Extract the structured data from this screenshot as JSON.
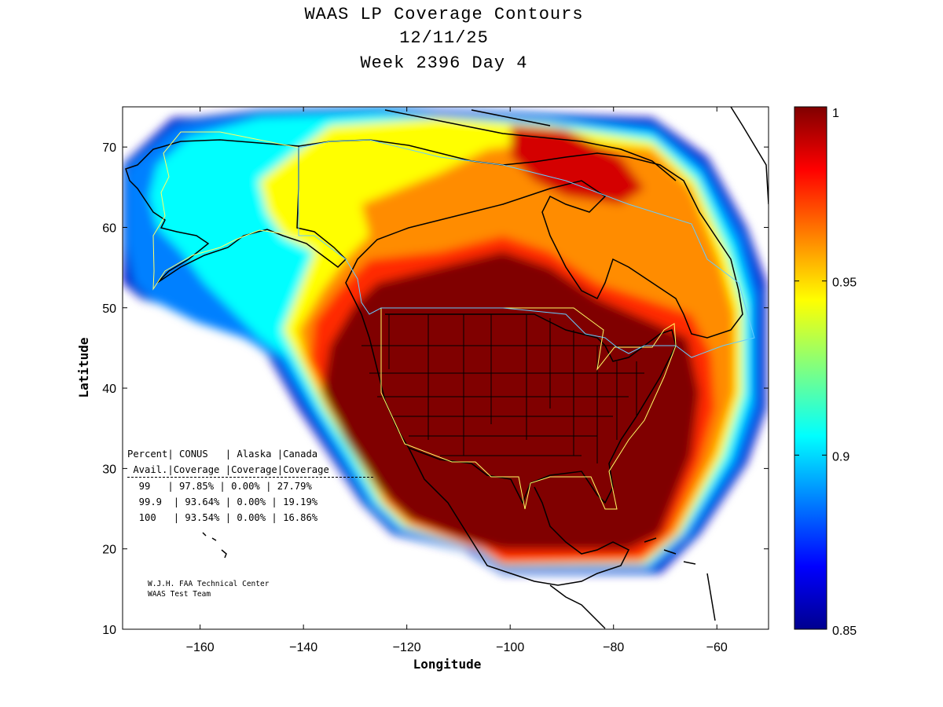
{
  "title": {
    "line1": "WAAS LP Coverage Contours",
    "line2": "12/11/25",
    "line3": "Week 2396 Day 4"
  },
  "axes": {
    "xlabel": "Longitude",
    "ylabel": "Latitude",
    "xlim": [
      -175,
      -50
    ],
    "ylim": [
      10,
      75
    ],
    "xticks": [
      -160,
      -140,
      -120,
      -100,
      -80,
      -60
    ],
    "yticks": [
      10,
      20,
      30,
      40,
      50,
      60,
      70
    ]
  },
  "colorbar": {
    "min": 0.85,
    "max": 1,
    "ticks": [
      "1",
      "0.95",
      "0.9",
      "0.85"
    ],
    "colormap": "jet"
  },
  "coverage_table": {
    "header1": "Percent| CONUS   | Alaska |Canada",
    "header2": " Avail.|Coverage |Coverage|Coverage",
    "columns": [
      "Percent Avail.",
      "CONUS Coverage",
      "Alaska Coverage",
      "Canada Coverage"
    ],
    "rows": [
      {
        "avail": "99",
        "conus": "97.85%",
        "alaska": "0.00%",
        "canada": "27.79%",
        "text": "  99   | 97.85% | 0.00% | 27.79%"
      },
      {
        "avail": "99.9",
        "conus": "93.64%",
        "alaska": "0.00%",
        "canada": "19.19%",
        "text": "  99.9  | 93.64% | 0.00% | 19.19%"
      },
      {
        "avail": "100",
        "conus": "93.54%",
        "alaska": "0.00%",
        "canada": "16.86%",
        "text": "  100   | 93.54% | 0.00% | 16.86%"
      }
    ]
  },
  "credit": {
    "line1": "W.J.H. FAA Technical Center",
    "line2": "WAAS Test Team"
  },
  "colors": {
    "outline": "#000000",
    "conus_boundary": "#ffff66",
    "canada_boundary": "#66ccff"
  }
}
